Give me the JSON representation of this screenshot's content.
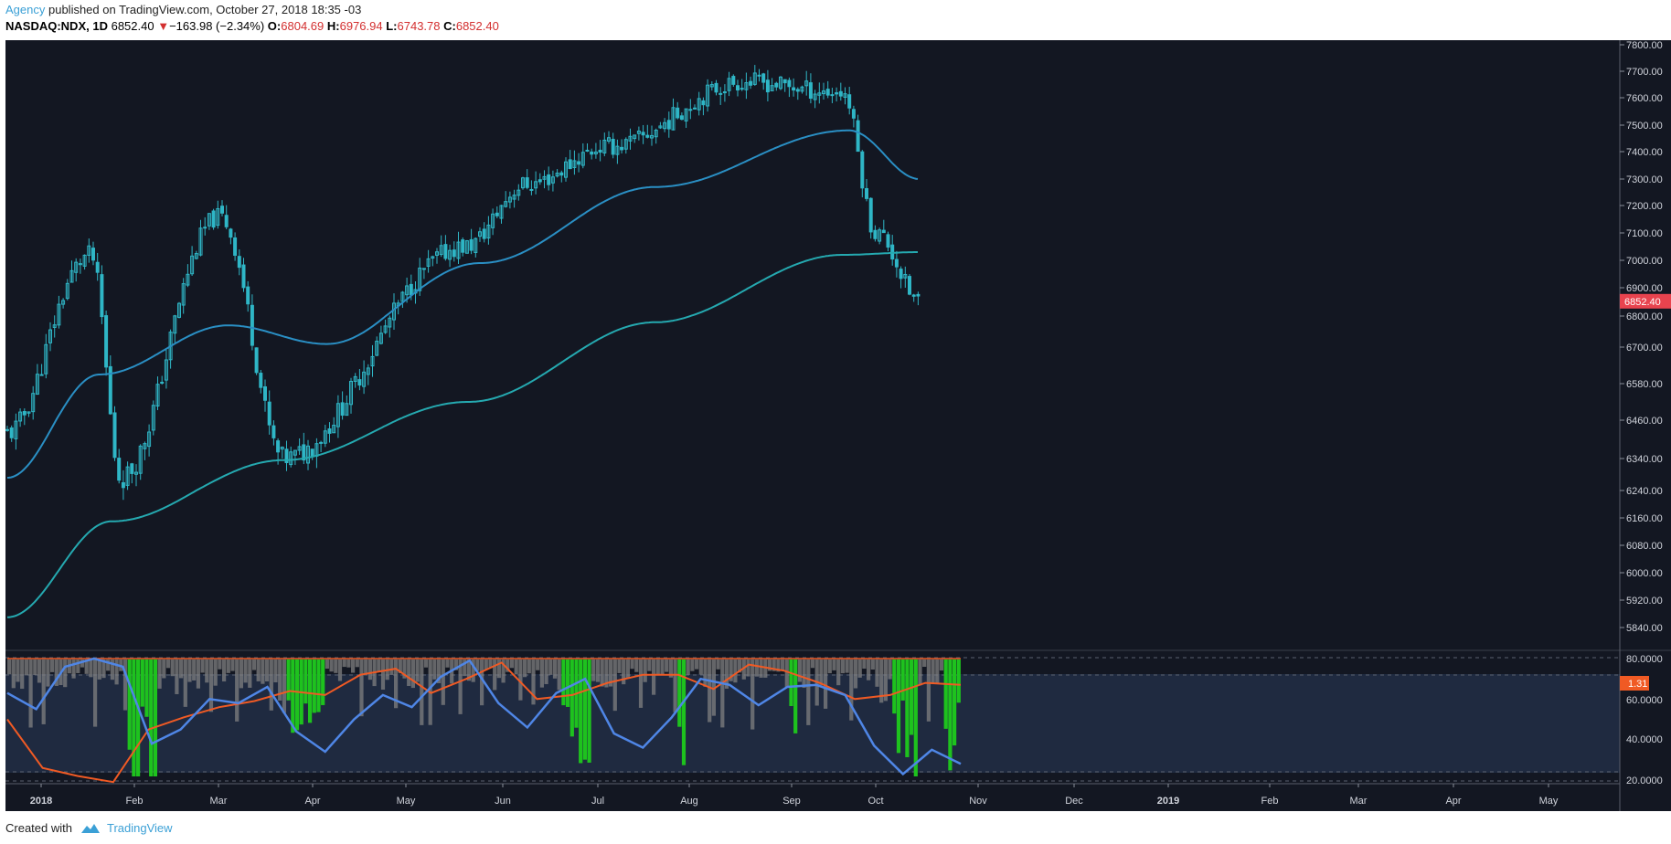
{
  "header": {
    "author": "Agency",
    "published_text": " published on TradingView.com, October 27, 2018 18:35 -03",
    "symbol": "NASDAQ:NDX, 1D",
    "last": "6852.40",
    "change": "−163.98 (−2.34%)",
    "o_label": "O:",
    "o_value": "6804.69",
    "h_label": "H:",
    "h_value": "6976.94",
    "l_label": "L:",
    "l_value": "6743.78",
    "c_label": "C:",
    "c_value": "6852.40",
    "down_icon": "triangle-down-icon"
  },
  "footer": {
    "created_with": "Created with",
    "brand": "TradingView",
    "logo_icon": "tradingview-cloud-icon"
  },
  "colors": {
    "background": "#131722",
    "osc_background": "#1f2a40",
    "candle": "#2fb6c6",
    "ma_fast": "#2a8fc4",
    "ma_slow": "#25a9b0",
    "osc_blue": "#4f86e6",
    "osc_orange": "#f05a24",
    "hist_gray": "#808080",
    "hist_green": "#1ec21e",
    "price_tag": "#e8434e",
    "osc_tag": "#f05a24"
  },
  "chart_data": [
    {
      "type": "candlestick",
      "symbol": "NASDAQ:NDX",
      "interval": "1D",
      "y_ticks": [
        "7800.00",
        "7700.00",
        "7600.00",
        "7500.00",
        "7400.00",
        "7300.00",
        "7200.00",
        "7100.00",
        "7000.00",
        "6900.00",
        "6800.00",
        "6700.00",
        "6580.00",
        "6460.00",
        "6340.00",
        "6240.00",
        "6160.00",
        "6080.00",
        "6000.00",
        "5920.00",
        "5840.00"
      ],
      "last_price_label": "6852.40",
      "x_ticks": [
        "2018",
        "Feb",
        "Mar",
        "Apr",
        "May",
        "Jun",
        "Jul",
        "Aug",
        "Sep",
        "Oct",
        "Nov",
        "Dec",
        "2019",
        "Feb",
        "Mar",
        "Apr",
        "May"
      ],
      "closes_sample": [
        {
          "date": "2018-01-02",
          "close": 6420
        },
        {
          "date": "2018-01-29",
          "close": 7020
        },
        {
          "date": "2018-02-08",
          "close": 6280
        },
        {
          "date": "2018-03-12",
          "close": 7160
        },
        {
          "date": "2018-04-02",
          "close": 6340
        },
        {
          "date": "2018-05-31",
          "close": 7050
        },
        {
          "date": "2018-06-20",
          "close": 7280
        },
        {
          "date": "2018-07-17",
          "close": 7420
        },
        {
          "date": "2018-08-30",
          "close": 7660
        },
        {
          "date": "2018-10-01",
          "close": 7620
        },
        {
          "date": "2018-10-12",
          "close": 7100
        },
        {
          "date": "2018-10-26",
          "close": 6852.4
        }
      ],
      "ma_fast_sample": [
        {
          "date": "2018-01-02",
          "value": 6280
        },
        {
          "date": "2018-02-01",
          "value": 6610
        },
        {
          "date": "2018-03-15",
          "value": 6770
        },
        {
          "date": "2018-04-16",
          "value": 6710
        },
        {
          "date": "2018-06-05",
          "value": 6990
        },
        {
          "date": "2018-08-01",
          "value": 7270
        },
        {
          "date": "2018-10-03",
          "value": 7480
        },
        {
          "date": "2018-10-26",
          "value": 7300
        }
      ],
      "ma_slow_sample": [
        {
          "date": "2018-01-02",
          "value": 5870
        },
        {
          "date": "2018-02-05",
          "value": 6150
        },
        {
          "date": "2018-04-02",
          "value": 6335
        },
        {
          "date": "2018-06-01",
          "value": 6520
        },
        {
          "date": "2018-08-01",
          "value": 6780
        },
        {
          "date": "2018-10-01",
          "value": 7020
        },
        {
          "date": "2018-10-26",
          "value": 7030
        }
      ]
    },
    {
      "type": "oscillator",
      "y_ticks": [
        "80.0000",
        "60.0000",
        "40.0000",
        "20.0000"
      ],
      "last_value_label": "1.31",
      "series": [
        {
          "values_sample": [
            63,
            55,
            76,
            80,
            76,
            38,
            45,
            60,
            58,
            66,
            44,
            34,
            50,
            62,
            56,
            71,
            79,
            58,
            46,
            63,
            70,
            43,
            36,
            51,
            70,
            67,
            57,
            66,
            67,
            62,
            37,
            23,
            35,
            28
          ]
        },
        {
          "values_sample": [
            50,
            26,
            22,
            19,
            45,
            51,
            56,
            59,
            64,
            62,
            72,
            75,
            63,
            70,
            78,
            60,
            62,
            68,
            72,
            72,
            65,
            77,
            74,
            68,
            60,
            62,
            68,
            67
          ]
        }
      ]
    }
  ]
}
